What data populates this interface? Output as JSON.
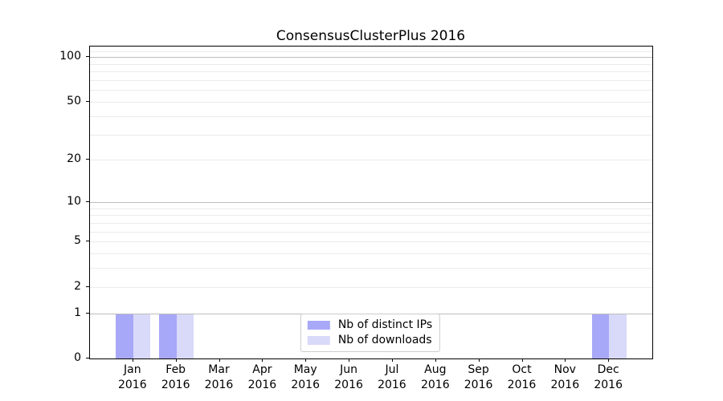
{
  "chart_data": {
    "type": "bar",
    "title": "ConsensusClusterPlus 2016",
    "categories": [
      "Jan",
      "Feb",
      "Mar",
      "Apr",
      "May",
      "Jun",
      "Jul",
      "Aug",
      "Sep",
      "Oct",
      "Nov",
      "Dec"
    ],
    "category_year": "2016",
    "series": [
      {
        "name": "Nb of distinct IPs",
        "color": "#a8a8f8",
        "values": [
          1,
          1,
          0,
          0,
          0,
          0,
          0,
          0,
          0,
          0,
          0,
          1
        ]
      },
      {
        "name": "Nb of downloads",
        "color": "#d9d9f9",
        "values": [
          1,
          1,
          0,
          0,
          0,
          0,
          0,
          0,
          0,
          0,
          0,
          1
        ]
      }
    ],
    "xlabel": "",
    "ylabel": "",
    "yscale": "log1p",
    "ylim": [
      0,
      118
    ],
    "yticks": [
      0,
      1,
      2,
      5,
      10,
      20,
      50,
      100
    ],
    "major_gridlines": [
      1,
      10,
      100
    ],
    "minor_gridlines": [
      2,
      3,
      4,
      5,
      6,
      7,
      8,
      9,
      20,
      30,
      40,
      50,
      60,
      70,
      80,
      90,
      110
    ],
    "grid": true,
    "legend_position": "lower center",
    "legend_labels": [
      "Nb of distinct IPs",
      "Nb of downloads"
    ]
  },
  "colors": {
    "major_grid": "#bdbdbd",
    "minor_grid": "#ebebeb",
    "axis": "#000000",
    "background": "#ffffff"
  }
}
